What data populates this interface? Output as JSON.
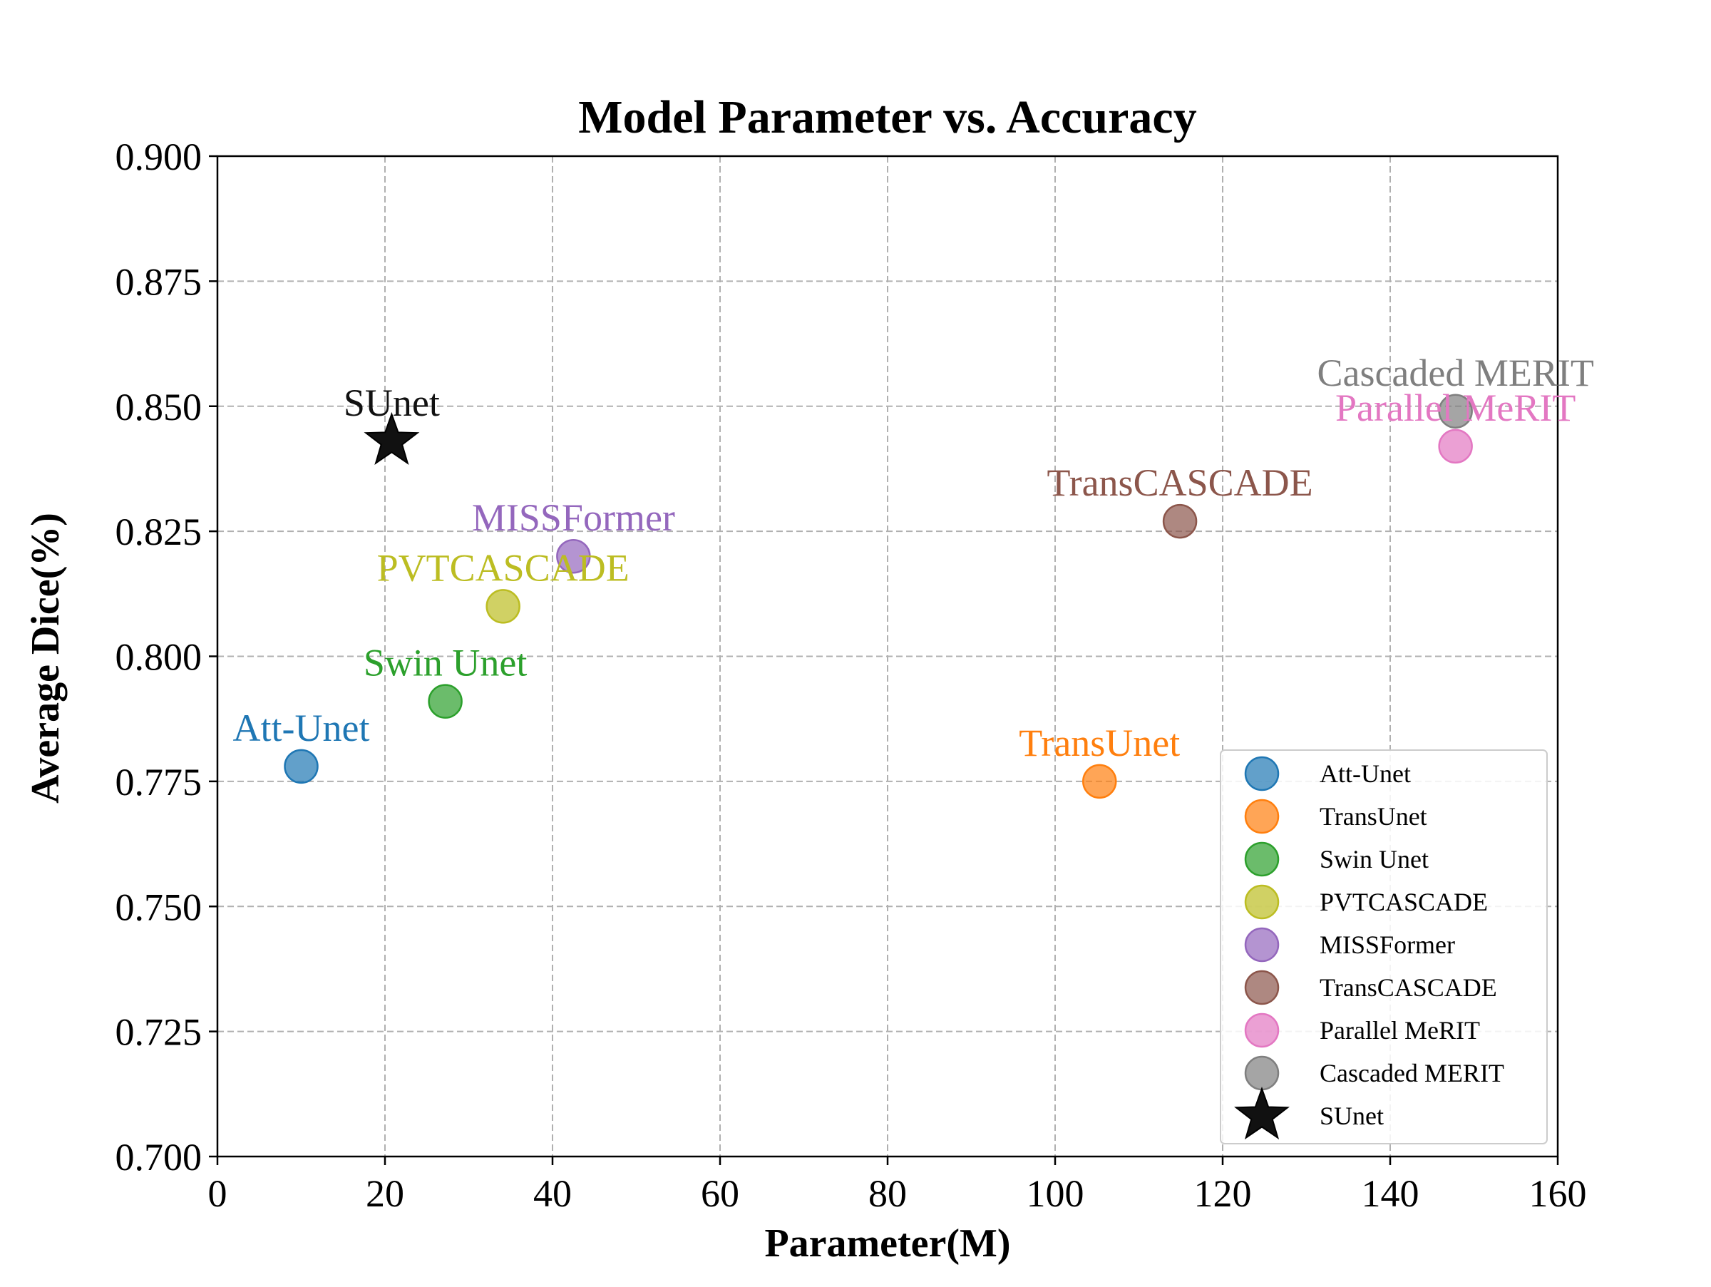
{
  "chart_data": {
    "type": "scatter",
    "title": "Model Parameter vs. Accuracy",
    "xlabel": "Parameter(M)",
    "ylabel": "Average Dice(%)",
    "xlim": [
      0,
      160
    ],
    "ylim": [
      0.7,
      0.9
    ],
    "xticks": [
      0,
      20,
      40,
      60,
      80,
      100,
      120,
      140,
      160
    ],
    "yticks": [
      0.7,
      0.725,
      0.75,
      0.775,
      0.8,
      0.825,
      0.85,
      0.875,
      0.9
    ],
    "ytick_labels": [
      "0.700",
      "0.725",
      "0.750",
      "0.775",
      "0.800",
      "0.825",
      "0.850",
      "0.875",
      "0.900"
    ],
    "grid": true,
    "legend_position": "lower right",
    "series": [
      {
        "name": "Att-Unet",
        "x": 10,
        "y": 0.778,
        "color": "#1f77b4",
        "marker": "circle"
      },
      {
        "name": "TransUnet",
        "x": 105.3,
        "y": 0.775,
        "color": "#ff7f0e",
        "marker": "circle"
      },
      {
        "name": "Swin Unet",
        "x": 27.2,
        "y": 0.791,
        "color": "#2ca02c",
        "marker": "circle"
      },
      {
        "name": "PVTCASCADE",
        "x": 34.1,
        "y": 0.81,
        "color": "#bcbd22",
        "marker": "circle"
      },
      {
        "name": "MISSFormer",
        "x": 42.5,
        "y": 0.82,
        "color": "#9467bd",
        "marker": "circle"
      },
      {
        "name": "TransCASCADE",
        "x": 114.9,
        "y": 0.827,
        "color": "#8c564b",
        "marker": "circle"
      },
      {
        "name": "Parallel MeRIT",
        "x": 147.8,
        "y": 0.842,
        "color": "#e377c2",
        "marker": "circle"
      },
      {
        "name": "Cascaded MERIT",
        "x": 147.8,
        "y": 0.849,
        "color": "#7f7f7f",
        "marker": "circle"
      },
      {
        "name": "SUnet",
        "x": 20.8,
        "y": 0.843,
        "color": "#111111",
        "marker": "star"
      }
    ]
  }
}
